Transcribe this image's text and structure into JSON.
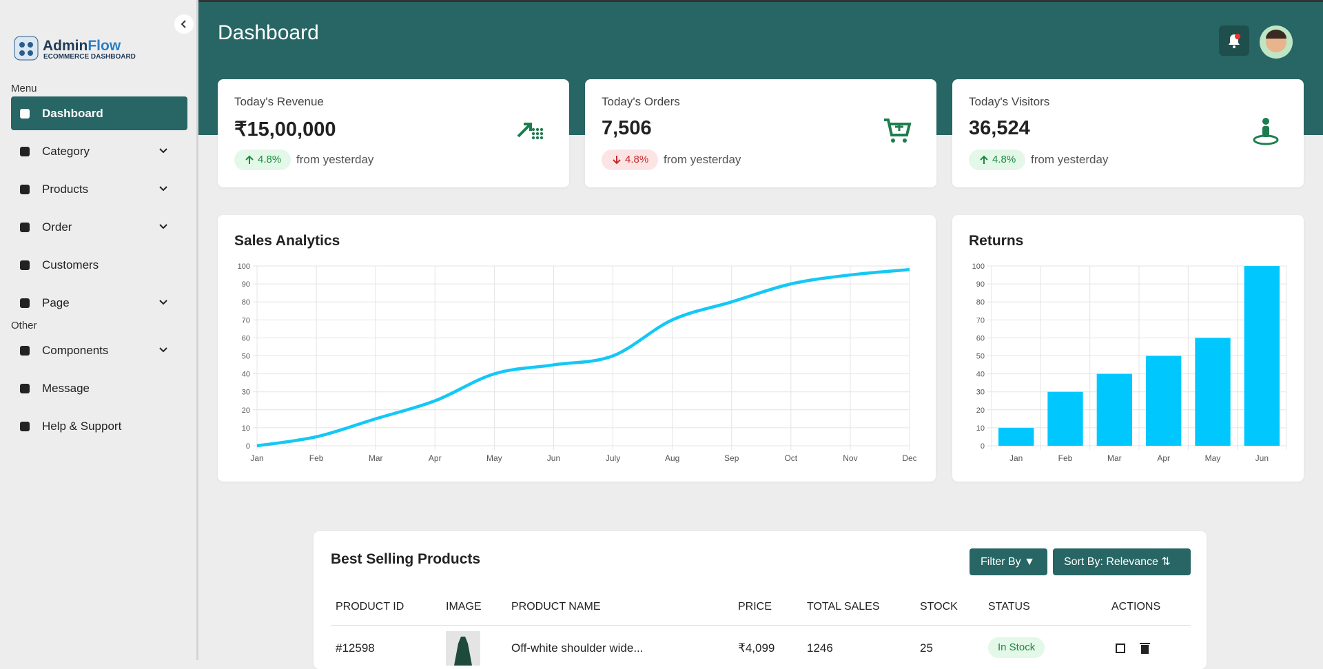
{
  "sidebar": {
    "brand": {
      "name_part1": "Admin",
      "name_part2": "Flow",
      "tagline": "ECOMMERCE DASHBOARD"
    },
    "sections": [
      {
        "label": "Menu",
        "items": [
          {
            "label": "Dashboard",
            "active": true,
            "has_submenu": false
          },
          {
            "label": "Category",
            "has_submenu": true
          },
          {
            "label": "Products",
            "has_submenu": true
          },
          {
            "label": "Order",
            "has_submenu": true
          },
          {
            "label": "Customers",
            "has_submenu": false
          },
          {
            "label": "Page",
            "has_submenu": true
          }
        ]
      },
      {
        "label": "Other",
        "items": [
          {
            "label": "Components",
            "has_submenu": true
          },
          {
            "label": "Message",
            "has_submenu": false
          },
          {
            "label": "Help & Support",
            "has_submenu": false
          }
        ]
      }
    ]
  },
  "header": {
    "title": "Dashboard"
  },
  "cards": [
    {
      "label": "Today's Revenue",
      "value": "₹15,00,000",
      "change": "4.8%",
      "trend": "up",
      "note": "from yesterday"
    },
    {
      "label": "Today's Orders",
      "value": "7,506",
      "change": "4.8%",
      "trend": "down",
      "note": "from yesterday"
    },
    {
      "label": "Today's Visitors",
      "value": "36,524",
      "change": "4.8%",
      "trend": "up",
      "note": "from yesterday"
    }
  ],
  "chart_data": [
    {
      "type": "line",
      "title": "Sales Analytics",
      "categories": [
        "Jan",
        "Feb",
        "Mar",
        "Apr",
        "May",
        "Jun",
        "July",
        "Aug",
        "Sep",
        "Oct",
        "Nov",
        "Dec"
      ],
      "values": [
        0,
        5,
        15,
        25,
        40,
        45,
        50,
        70,
        80,
        90,
        95,
        98
      ],
      "color": "#14c8f5",
      "ylim": [
        0,
        100
      ],
      "yticks": [
        0,
        10,
        20,
        30,
        40,
        50,
        60,
        70,
        80,
        90,
        100
      ],
      "grid": true
    },
    {
      "type": "bar",
      "title": "Returns",
      "categories": [
        "Jan",
        "Feb",
        "Mar",
        "Apr",
        "May",
        "Jun"
      ],
      "values": [
        10,
        30,
        40,
        50,
        60,
        100
      ],
      "color": "#00c8ff",
      "ylim": [
        0,
        100
      ],
      "yticks": [
        0,
        10,
        20,
        30,
        40,
        50,
        60,
        70,
        80,
        90,
        100
      ],
      "grid": true
    }
  ],
  "table": {
    "title": "Best Selling Products",
    "filter_button": "Filter By",
    "sort_button": "Sort By: Relevance",
    "columns": [
      "PRODUCT ID",
      "IMAGE",
      "PRODUCT NAME",
      "PRICE",
      "TOTAL SALES",
      "STOCK",
      "STATUS",
      "ACTIONS"
    ],
    "rows": [
      {
        "id": "#12598",
        "name": "Off-white shoulder wide...",
        "price": "₹4,099",
        "total_sales": "1246",
        "stock": "25",
        "status": "In Stock"
      }
    ]
  }
}
